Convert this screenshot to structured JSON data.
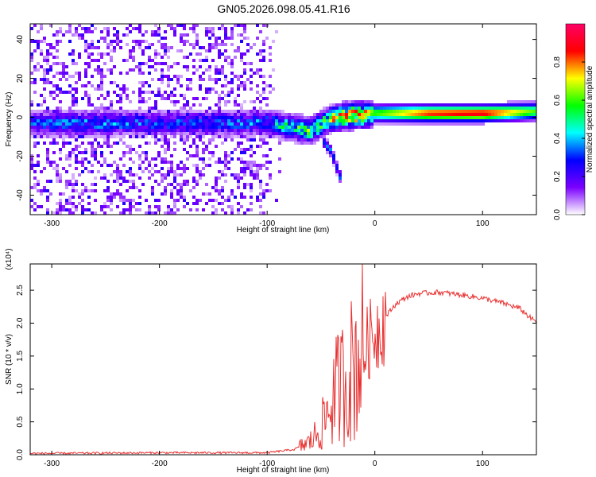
{
  "title": "GN05.2026.098.05.41.R16",
  "chart_data": [
    {
      "type": "heatmap",
      "xlabel": "Height of straight line (km)",
      "ylabel": "Frequency (Hz)",
      "xlim": [
        -320,
        150
      ],
      "ylim": [
        -50,
        48
      ],
      "x_ticks": [
        -300,
        -200,
        -100,
        0,
        100
      ],
      "x_tick_labels": [
        "-300",
        "-200",
        "-100",
        "0",
        "100"
      ],
      "y_ticks": [
        -40,
        -20,
        0,
        20,
        40
      ],
      "y_tick_labels": [
        "-40",
        "-20",
        "0",
        "20",
        "40"
      ],
      "colorbar": {
        "label": "Normalized spectral amplitude",
        "range": [
          0,
          1
        ],
        "ticks": [
          0.0,
          0.2,
          0.4,
          0.6,
          0.8
        ],
        "tick_labels": [
          "0.0",
          "0.2",
          "0.4",
          "0.6",
          "0.8"
        ],
        "colors": [
          "#ffffff",
          "#7b00ff",
          "#0000ff",
          "#00ffff",
          "#00ff00",
          "#ffff00",
          "#ff0000",
          "#ff0066"
        ]
      },
      "ridge": {
        "x": [
          -320,
          -260,
          -200,
          -150,
          -100,
          -80,
          -60,
          -45,
          -35,
          -20,
          -10,
          0,
          20,
          50,
          100,
          150
        ],
        "freq_hz": [
          -3,
          -3,
          -3,
          -3,
          -3,
          -5,
          -7,
          -2,
          0,
          1,
          1,
          2,
          2,
          2,
          2,
          3
        ],
        "amplitude": [
          0.3,
          0.35,
          0.3,
          0.3,
          0.35,
          0.5,
          0.6,
          0.55,
          0.75,
          0.85,
          0.8,
          0.6,
          0.7,
          0.85,
          0.9,
          0.6
        ]
      },
      "branch": {
        "x": [
          -48,
          -40,
          -30
        ],
        "freq_hz": [
          -12,
          -18,
          -34
        ]
      },
      "noise_region_end_x": -85
    },
    {
      "type": "line",
      "xlabel": "Height of straight line (km)",
      "ylabel": "SNR (10 * v/v)",
      "scale_label": "(x10⁴)",
      "xlim": [
        -320,
        150
      ],
      "ylim": [
        0,
        2.9
      ],
      "x_ticks": [
        -300,
        -200,
        -100,
        0,
        100
      ],
      "x_tick_labels": [
        "-300",
        "-200",
        "-100",
        "0",
        "100"
      ],
      "y_ticks": [
        0,
        0.5,
        1.0,
        1.5,
        2.0,
        2.5
      ],
      "y_tick_labels": [
        "0.0",
        "0.5",
        "1.0",
        "1.5",
        "2.0",
        "2.5"
      ],
      "series": [
        {
          "color": "#e83030",
          "x": [
            -320,
            -200,
            -100,
            -75,
            -60,
            -50,
            -45,
            -40,
            -35,
            -30,
            -25,
            -20,
            -15,
            -10,
            -5,
            0,
            10,
            20,
            30,
            40,
            60,
            80,
            100,
            120,
            135,
            145,
            150
          ],
          "y": [
            0.02,
            0.03,
            0.03,
            0.08,
            0.2,
            0.4,
            0.6,
            0.8,
            1.0,
            1.1,
            1.2,
            1.35,
            1.5,
            1.6,
            1.75,
            1.85,
            2.1,
            2.3,
            2.4,
            2.45,
            2.47,
            2.43,
            2.38,
            2.3,
            2.22,
            2.07,
            2.02
          ]
        }
      ]
    }
  ]
}
